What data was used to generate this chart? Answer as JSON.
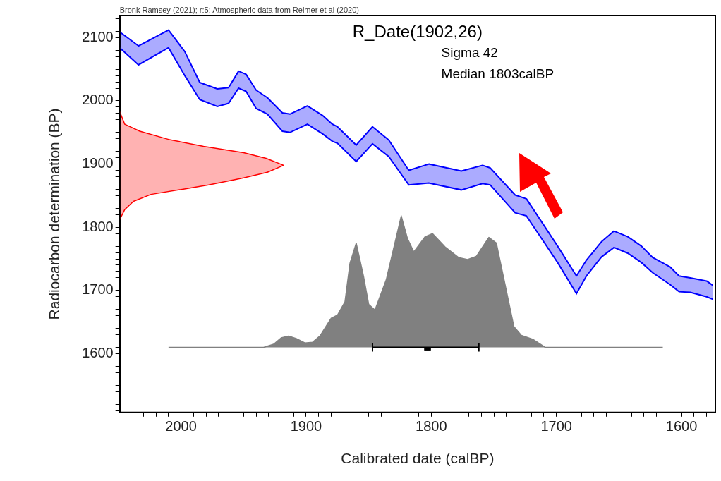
{
  "chart_data": {
    "type": "line",
    "title": "R_Date(1902,26)",
    "xlabel": "Calibrated date (calBP)",
    "ylabel": "Radiocarbon determination (BP)",
    "annotations": [
      "Bronk Ramsey (2021); r:5: Atmospheric data from Reimer et al (2020)",
      "Sigma 42",
      "Median 1803calBP"
    ],
    "xlim": [
      2049,
      1573
    ],
    "ylim": [
      1507,
      2135
    ],
    "xticks": [
      {
        "value": 2040,
        "label": null
      },
      {
        "value": 2030,
        "label": null
      },
      {
        "value": 2020,
        "label": null
      },
      {
        "value": 2010,
        "label": null
      },
      2000,
      {
        "value": 1990,
        "label": null
      },
      {
        "value": 1980,
        "label": null
      },
      {
        "value": 1970,
        "label": null
      },
      {
        "value": 1960,
        "label": null
      },
      {
        "value": 1950,
        "label": null
      },
      {
        "value": 1940,
        "label": null
      },
      {
        "value": 1930,
        "label": null
      },
      {
        "value": 1920,
        "label": null
      },
      {
        "value": 1910,
        "label": null
      },
      1900,
      {
        "value": 1890,
        "label": null
      },
      {
        "value": 1880,
        "label": null
      },
      {
        "value": 1870,
        "label": null
      },
      {
        "value": 1860,
        "label": null
      },
      {
        "value": 1850,
        "label": null
      },
      {
        "value": 1840,
        "label": null
      },
      {
        "value": 1830,
        "label": null
      },
      {
        "value": 1820,
        "label": null
      },
      {
        "value": 1810,
        "label": null
      },
      1800,
      {
        "value": 1790,
        "label": null
      },
      {
        "value": 1780,
        "label": null
      },
      {
        "value": 1770,
        "label": null
      },
      {
        "value": 1760,
        "label": null
      },
      {
        "value": 1750,
        "label": null
      },
      {
        "value": 1740,
        "label": null
      },
      {
        "value": 1730,
        "label": null
      },
      {
        "value": 1720,
        "label": null
      },
      {
        "value": 1710,
        "label": null
      },
      1700,
      {
        "value": 1690,
        "label": null
      },
      {
        "value": 1680,
        "label": null
      },
      {
        "value": 1670,
        "label": null
      },
      {
        "value": 1660,
        "label": null
      },
      {
        "value": 1650,
        "label": null
      },
      {
        "value": 1640,
        "label": null
      },
      {
        "value": 1630,
        "label": null
      },
      {
        "value": 1620,
        "label": null
      },
      {
        "value": 1610,
        "label": null
      },
      1600,
      {
        "value": 1590,
        "label": null
      },
      {
        "value": 1580,
        "label": null
      }
    ],
    "yticks": [
      {
        "value": 1510,
        "label": null
      },
      {
        "value": 1520,
        "label": null
      },
      {
        "value": 1530,
        "label": null
      },
      {
        "value": 1540,
        "label": null
      },
      {
        "value": 1550,
        "label": null
      },
      {
        "value": 1560,
        "label": null
      },
      {
        "value": 1570,
        "label": null
      },
      {
        "value": 1580,
        "label": null
      },
      {
        "value": 1590,
        "label": null
      },
      1600,
      {
        "value": 1610,
        "label": null
      },
      {
        "value": 1620,
        "label": null
      },
      {
        "value": 1630,
        "label": null
      },
      {
        "value": 1640,
        "label": null
      },
      {
        "value": 1650,
        "label": null
      },
      {
        "value": 1660,
        "label": null
      },
      {
        "value": 1670,
        "label": null
      },
      {
        "value": 1680,
        "label": null
      },
      {
        "value": 1690,
        "label": null
      },
      1700,
      {
        "value": 1710,
        "label": null
      },
      {
        "value": 1720,
        "label": null
      },
      {
        "value": 1730,
        "label": null
      },
      {
        "value": 1740,
        "label": null
      },
      {
        "value": 1750,
        "label": null
      },
      {
        "value": 1760,
        "label": null
      },
      {
        "value": 1770,
        "label": null
      },
      {
        "value": 1780,
        "label": null
      },
      {
        "value": 1790,
        "label": null
      },
      1800,
      {
        "value": 1810,
        "label": null
      },
      {
        "value": 1820,
        "label": null
      },
      {
        "value": 1830,
        "label": null
      },
      {
        "value": 1840,
        "label": null
      },
      {
        "value": 1850,
        "label": null
      },
      {
        "value": 1860,
        "label": null
      },
      {
        "value": 1870,
        "label": null
      },
      {
        "value": 1880,
        "label": null
      },
      {
        "value": 1890,
        "label": null
      },
      1900,
      {
        "value": 1910,
        "label": null
      },
      {
        "value": 1920,
        "label": null
      },
      {
        "value": 1930,
        "label": null
      },
      {
        "value": 1940,
        "label": null
      },
      {
        "value": 1950,
        "label": null
      },
      {
        "value": 1960,
        "label": null
      },
      {
        "value": 1970,
        "label": null
      },
      {
        "value": 1980,
        "label": null
      },
      {
        "value": 1990,
        "label": null
      },
      2000,
      {
        "value": 2010,
        "label": null
      },
      {
        "value": 2020,
        "label": null
      },
      {
        "value": 2030,
        "label": null
      },
      {
        "value": 2040,
        "label": null
      },
      {
        "value": 2050,
        "label": null
      },
      {
        "value": 2060,
        "label": null
      },
      {
        "value": 2070,
        "label": null
      },
      {
        "value": 2080,
        "label": null
      },
      {
        "value": 2090,
        "label": null
      },
      2100,
      {
        "value": 2110,
        "label": null
      },
      {
        "value": 2120,
        "label": null
      },
      {
        "value": 2130,
        "label": null
      }
    ],
    "grid": false,
    "legend": false,
    "series": [
      {
        "color": "#0000ff",
        "x": [
          2049,
          2034,
          2010,
          1997,
          1985,
          1971,
          1962,
          1954,
          1948,
          1940,
          1931,
          1919,
          1913,
          1899,
          1887,
          1879,
          1875,
          1860,
          1847,
          1834,
          1818,
          1802,
          1776,
          1759,
          1753,
          1733,
          1724,
          1699,
          1684,
          1676,
          1664,
          1654,
          1643,
          1632,
          1623,
          1609,
          1602,
          1593,
          1580,
          1575
        ],
        "values": [
          2084,
          2057,
          2084,
          2040,
          2002,
          1991,
          1996,
          2020,
          2015,
          1988,
          1979,
          1952,
          1950,
          1963,
          1948,
          1936,
          1933,
          1904,
          1932,
          1912,
          1867,
          1870,
          1859,
          1869,
          1867,
          1823,
          1818,
          1744,
          1695,
          1723,
          1753,
          1768,
          1759,
          1744,
          1728,
          1709,
          1698,
          1697,
          1690,
          1686
        ]
      },
      {
        "type": "area",
        "color": "#0000ff",
        "x": [
          2049,
          2034,
          2010,
          1997,
          1985,
          1971,
          1962,
          1954,
          1948,
          1940,
          1931,
          1919,
          1913,
          1899,
          1887,
          1879,
          1875,
          1860,
          1847,
          1834,
          1818,
          1802,
          1776,
          1759,
          1753,
          1733,
          1724,
          1699,
          1684,
          1676,
          1664,
          1654,
          1643,
          1632,
          1623,
          1609,
          1602,
          1593,
          1580,
          1575
        ],
        "values": [
          2109,
          2087,
          2112,
          2078,
          2029,
          2019,
          2021,
          2047,
          2042,
          2017,
          2005,
          1981,
          1979,
          1992,
          1977,
          1963,
          1959,
          1930,
          1959,
          1938,
          1890,
          1900,
          1889,
          1898,
          1894,
          1851,
          1845,
          1770,
          1723,
          1748,
          1777,
          1794,
          1785,
          1770,
          1752,
          1737,
          1723,
          1720,
          1715,
          1708
        ]
      },
      {
        "type": "area",
        "color": "#ff0000",
        "x": [
          2049,
          2045,
          2033,
          2010,
          1982,
          1950,
          1932,
          1918,
          1931,
          1950,
          1978,
          1999,
          2024,
          2038,
          2045,
          2049
        ],
        "values": [
          1983,
          1963,
          1952,
          1939,
          1928,
          1918,
          1909,
          1898,
          1887,
          1878,
          1867,
          1860,
          1852,
          1841,
          1828,
          1812
        ]
      },
      {
        "type": "area",
        "color": "#808080",
        "x": [
          2010,
          1934,
          1926,
          1920,
          1914,
          1908,
          1901,
          1895,
          1889,
          1880,
          1875,
          1869,
          1865,
          1860,
          1854,
          1850,
          1845,
          1836,
          1824,
          1819,
          1814,
          1805,
          1799,
          1789,
          1778,
          1771,
          1764,
          1754,
          1748,
          1734,
          1728,
          1719,
          1709,
          1615
        ],
        "values": [
          1610,
          1610,
          1615,
          1625,
          1628,
          1624,
          1617,
          1618,
          1628,
          1656,
          1661,
          1682,
          1743,
          1775,
          1721,
          1678,
          1669,
          1717,
          1818,
          1782,
          1761,
          1785,
          1790,
          1769,
          1752,
          1749,
          1754,
          1784,
          1775,
          1643,
          1629,
          1623,
          1610,
          1610
        ]
      },
      {
        "type": "scatter",
        "color": "#000000",
        "x": [
          1803
        ],
        "values": [
          1610
        ],
        "xerrors": [
          [
            1762,
            1847
          ]
        ],
        "marker": "square"
      }
    ]
  }
}
